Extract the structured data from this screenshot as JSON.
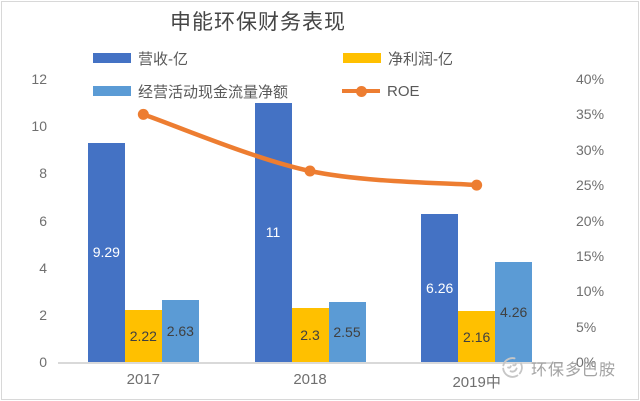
{
  "title": "申能环保财务表现",
  "legend": [
    {
      "id": "revenue",
      "label": "营收-亿",
      "color": "#4472C4",
      "marker": "bar"
    },
    {
      "id": "net_profit",
      "label": "净利润-亿",
      "color": "#FFC000",
      "marker": "bar"
    },
    {
      "id": "cash_flow",
      "label": "经营活动现金流量净额",
      "color": "#5B9BD5",
      "marker": "bar"
    },
    {
      "id": "roe",
      "label": "ROE",
      "color": "#ED7D31",
      "marker": "line"
    }
  ],
  "chart_data": {
    "type": "bar+line",
    "title": "申能环保财务表现",
    "categories": [
      "2017",
      "2018",
      "2019中"
    ],
    "series": [
      {
        "id": "revenue",
        "name": "营收-亿",
        "type": "bar",
        "axis": "left",
        "color": "#4472C4",
        "values": [
          9.29,
          11,
          6.26
        ],
        "labels": [
          "9.29",
          "11",
          "6.26"
        ],
        "label_color": "#ffffff"
      },
      {
        "id": "net_profit",
        "name": "净利润-亿",
        "type": "bar",
        "axis": "left",
        "color": "#FFC000",
        "values": [
          2.22,
          2.3,
          2.16
        ],
        "labels": [
          "2.22",
          "2.3",
          "2.16"
        ],
        "label_color": "#404040"
      },
      {
        "id": "cash_flow",
        "name": "经营活动现金流量净额",
        "type": "bar",
        "axis": "left",
        "color": "#5B9BD5",
        "values": [
          2.63,
          2.55,
          4.26
        ],
        "labels": [
          "2.63",
          "2.55",
          "4.26"
        ],
        "label_color": "#404040"
      },
      {
        "id": "roe",
        "name": "ROE",
        "type": "line",
        "axis": "right",
        "color": "#ED7D31",
        "values": [
          35,
          27,
          25
        ]
      }
    ],
    "left_axis": {
      "min": 0,
      "max": 12,
      "tick_labels": [
        "0",
        "2",
        "4",
        "6",
        "8",
        "10",
        "12"
      ]
    },
    "right_axis": {
      "min": 0,
      "max": 40,
      "tick_labels": [
        "0%",
        "5%",
        "10%",
        "15%",
        "20%",
        "25%",
        "30%",
        "35%",
        "40%"
      ]
    },
    "gridlines": false,
    "legend_position": "top"
  },
  "watermark": {
    "icon": "smiley-face-icon",
    "text": "环保多巴胺"
  }
}
